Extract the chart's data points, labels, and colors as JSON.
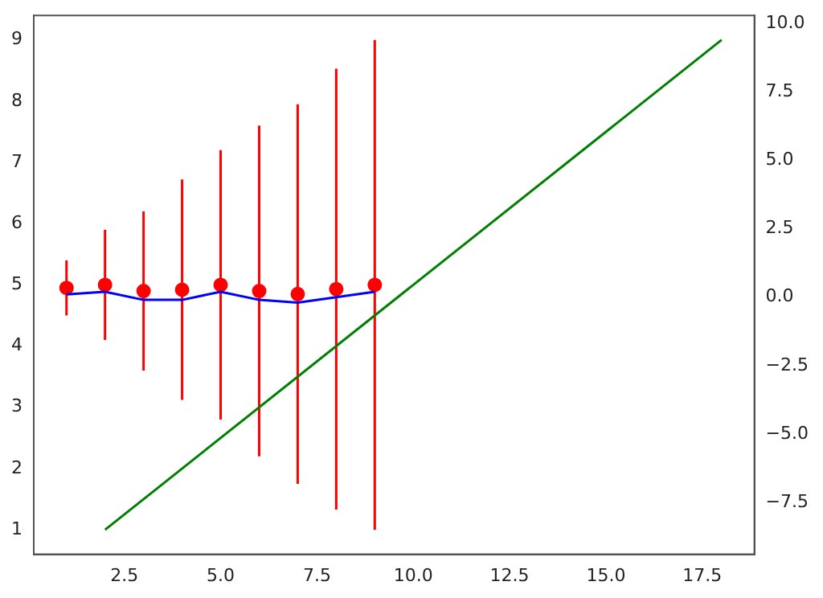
{
  "chart_data": {
    "type": "line",
    "xlim": [
      0.15,
      18.85
    ],
    "ylim": [
      0.6,
      9.4
    ],
    "y2lim": [
      -9.4,
      10.3
    ],
    "xticks": [
      2.5,
      {
        "value": 5,
        "label": "5.0"
      },
      7.5,
      {
        "value": 10,
        "label": "10.0"
      },
      12.5,
      {
        "value": 15,
        "label": "15.0"
      },
      17.5
    ],
    "yticks": [
      1,
      2,
      3,
      4,
      5,
      6,
      7,
      8,
      9
    ],
    "y2ticks": [
      {
        "value": -7.5,
        "label": "−7.5"
      },
      {
        "value": -5,
        "label": "−5.0"
      },
      {
        "value": -2.5,
        "label": "−2.5"
      },
      {
        "value": 0,
        "label": "0.0"
      },
      2.5,
      {
        "value": 5,
        "label": "5.0"
      },
      7.5,
      {
        "value": 10,
        "label": "10.0"
      }
    ],
    "series": [
      {
        "color": "#008000",
        "x": [
          2,
          18
        ],
        "values": [
          1,
          9
        ],
        "marker": "none"
      },
      {
        "axis": "y2",
        "color": "#0000ff",
        "x": [
          1,
          2,
          3,
          4,
          5,
          6,
          7,
          8,
          9
        ],
        "values": [
          0.1,
          0.2,
          -0.1,
          -0.1,
          0.2,
          -0.1,
          -0.2,
          0.0,
          0.2
        ],
        "marker": "none"
      },
      {
        "type": "scatter",
        "color": "#ff0000",
        "x": [
          1,
          2,
          3,
          4,
          5,
          6,
          7,
          8,
          9
        ],
        "values": [
          4.95,
          5.0,
          4.9,
          4.92,
          5.0,
          4.9,
          4.85,
          4.93,
          5.0
        ],
        "errors": [
          0.45,
          0.9,
          1.3,
          1.8,
          2.2,
          2.7,
          3.1,
          3.6,
          4.0
        ],
        "marker": "circle"
      }
    ]
  }
}
